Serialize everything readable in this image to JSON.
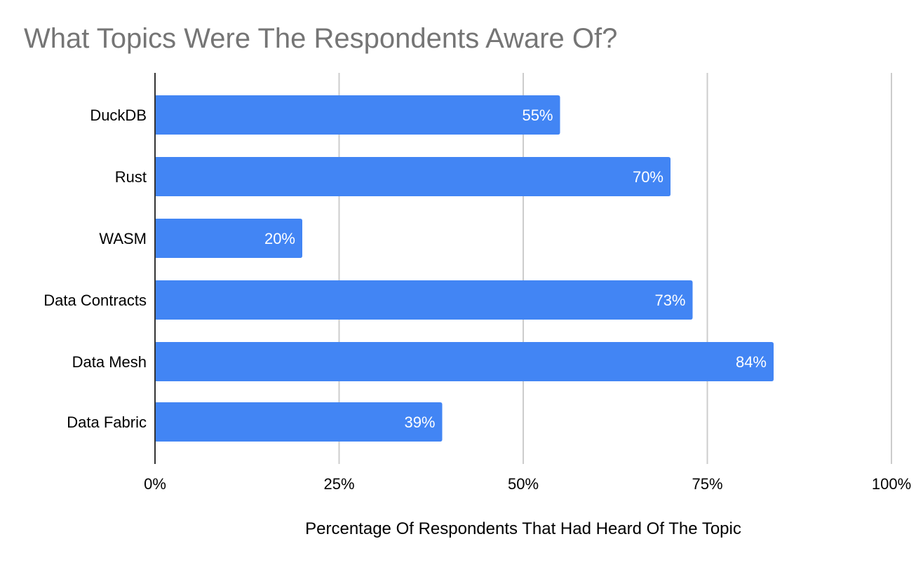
{
  "chart_data": {
    "type": "bar",
    "orientation": "horizontal",
    "title": "What Topics Were The Respondents Aware Of?",
    "xlabel": "Percentage Of Respondents That Had Heard Of The Topic",
    "ylabel": "",
    "categories": [
      "DuckDB",
      "Rust",
      "WASM",
      "Data Contracts",
      "Data Mesh",
      "Data Fabric"
    ],
    "values": [
      55,
      70,
      20,
      73,
      84,
      39
    ],
    "data_labels": [
      "55%",
      "70%",
      "20%",
      "73%",
      "84%",
      "39%"
    ],
    "xlim": [
      0,
      100
    ],
    "x_ticks": [
      0,
      25,
      50,
      75,
      100
    ],
    "x_tick_labels": [
      "0%",
      "25%",
      "50%",
      "75%",
      "100%"
    ],
    "grid": "vertical",
    "legend": "none",
    "colors": {
      "bar": "#4285f4",
      "title": "#757575",
      "grid": "#cccccc",
      "axis": "#333333",
      "text": "#000000",
      "data_label": "#ffffff"
    }
  }
}
